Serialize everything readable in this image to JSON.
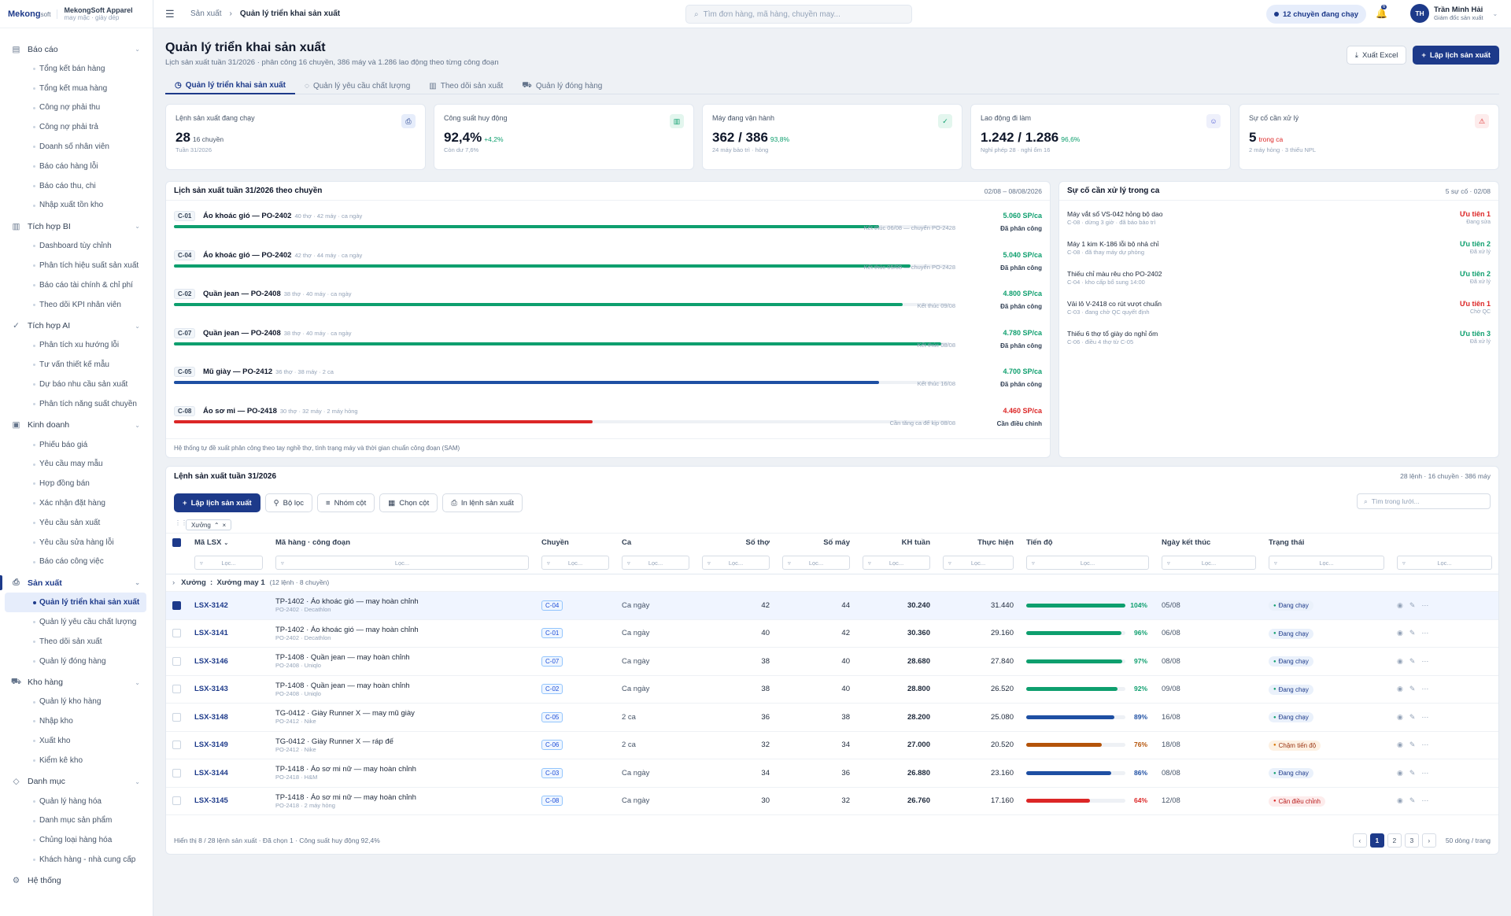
{
  "brand": {
    "logo": "Mekong",
    "logo_suffix": "soft",
    "name": "MekongSoft Apparel",
    "sub": "may mặc · giày dép"
  },
  "sidebar": {
    "groups": [
      {
        "label": "Báo cáo",
        "icon": "file-icon",
        "items": [
          "Tổng kết bán hàng",
          "Tổng kết mua hàng",
          "Công nợ phải thu",
          "Công nợ phải trả",
          "Doanh số nhân viên",
          "Báo cáo hàng lỗi",
          "Báo cáo thu, chi",
          "Nhập xuất tồn kho"
        ]
      },
      {
        "label": "Tích hợp BI",
        "icon": "chart-icon",
        "items": [
          "Dashboard tùy chỉnh",
          "Phân tích hiệu suất sản xuất",
          "Báo cáo tài chính & chỉ phí",
          "Theo dõi KPI nhân viên"
        ]
      },
      {
        "label": "Tích hợp AI",
        "icon": "check-circle-icon",
        "items": [
          "Phân tích xu hướng lỗi",
          "Tư vấn thiết kế mẫu",
          "Dự báo nhu cầu sản xuất",
          "Phân tích năng suất chuyền"
        ]
      },
      {
        "label": "Kinh doanh",
        "icon": "briefcase-icon",
        "items": [
          "Phiếu báo giá",
          "Yêu cầu may mẫu",
          "Hợp đồng bán",
          "Xác nhận đặt hàng",
          "Yêu cầu sản xuất",
          "Yêu cầu sửa hàng lỗi",
          "Báo cáo công việc"
        ]
      },
      {
        "label": "Sản xuất",
        "icon": "printer-icon",
        "active": true,
        "items": [
          "Quản lý triển khai sản xuất",
          "Quản lý yêu cầu chất lượng",
          "Theo dõi sản xuất",
          "Quản lý đóng hàng"
        ]
      },
      {
        "label": "Kho hàng",
        "icon": "truck-icon",
        "items": [
          "Quản lý kho hàng",
          "Nhập kho",
          "Xuất kho",
          "Kiểm kê kho"
        ]
      },
      {
        "label": "Danh mục",
        "icon": "box-icon",
        "items": [
          "Quản lý hàng hóa",
          "Danh mục sản phẩm",
          "Chủng loại hàng hóa",
          "Khách hàng - nhà cung cấp"
        ]
      },
      {
        "label": "Hệ thống",
        "icon": "gear-icon",
        "items": []
      }
    ]
  },
  "topbar": {
    "crumb1": "Sản xuất",
    "crumb2": "Quản lý triển khai sản xuất",
    "search_placeholder": "Tìm đơn hàng, mã hàng, chuyền may...",
    "running_pill": "12 chuyền đang chạy",
    "notif_count": "6",
    "user_initials": "TH",
    "user_name": "Trần Minh Hải",
    "user_role": "Giám đốc sản xuất"
  },
  "page": {
    "title": "Quản lý triển khai sản xuất",
    "subtitle": "Lịch sản xuất tuần 31/2026 · phân công 16 chuyền, 386 máy và 1.286 lao động theo từng công đoạn",
    "export": "Xuất Excel",
    "schedule": "Lập lịch sản xuất"
  },
  "tabs": [
    "Quản lý triển khai sản xuất",
    "Quản lý yêu cầu chất lượng",
    "Theo dõi sản xuất",
    "Quản lý đóng hàng"
  ],
  "kpis": [
    {
      "label": "Lệnh sản xuất đang chạy",
      "value": "28",
      "extra": "16 chuyền",
      "extra_color": "#475569",
      "note": "Tuần 31/2026",
      "icon": "printer-icon",
      "icon_bg": "#e6edfb",
      "icon_color": "#1d3a8a"
    },
    {
      "label": "Công suất huy động",
      "value": "92,4%",
      "extra": "+4,2%",
      "extra_color": "#0e9f6e",
      "note": "Còn dư 7,6%",
      "icon": "bar-chart-icon",
      "icon_bg": "#e3f6ee",
      "icon_color": "#0e9f6e"
    },
    {
      "label": "Máy đang vận hành",
      "value": "362 / 386",
      "extra": "93,8%",
      "extra_color": "#0e9f6e",
      "note": "24 máy bảo trì · hỏng",
      "icon": "check-circle-icon",
      "icon_bg": "#e3f6ee",
      "icon_color": "#0e9f6e"
    },
    {
      "label": "Lao động đi làm",
      "value": "1.242 / 1.286",
      "extra": "96,6%",
      "extra_color": "#0e9f6e",
      "note": "Nghỉ phép 28 · nghỉ ốm 16",
      "icon": "users-icon",
      "icon_bg": "#eef0fb",
      "icon_color": "#4f5bd5"
    },
    {
      "label": "Sự cố cần xử lý",
      "value": "5",
      "extra": "trong ca",
      "extra_color": "#dc2626",
      "note": "2 máy hỏng · 3 thiếu NPL",
      "icon": "warning-icon",
      "icon_bg": "#fdecec",
      "icon_color": "#dc2626"
    }
  ],
  "schedule": {
    "title": "Lịch sản xuất tuần 31/2026 theo chuyền",
    "range": "02/08 – 08/08/2026",
    "rows": [
      {
        "code": "C-01",
        "name": "Áo khoác gió — PO-2402",
        "meta": "40 thợ · 42 máy · ca ngày",
        "rate": "5.060 SP/ca",
        "rate_color": "#0e9f6e",
        "pct": 0.91,
        "color": "#0e9f6e",
        "end": "Kết thúc 06/08 — chuyển PO-2428",
        "status": "Đã phân công"
      },
      {
        "code": "C-04",
        "name": "Áo khoác gió — PO-2402",
        "meta": "42 thợ · 44 máy · ca ngày",
        "rate": "5.040 SP/ca",
        "rate_color": "#0e9f6e",
        "pct": 0.95,
        "color": "#0e9f6e",
        "end": "Kết thúc 05/08 — chuyển PO-2428",
        "status": "Đã phân công"
      },
      {
        "code": "C-02",
        "name": "Quần jean — PO-2408",
        "meta": "38 thợ · 40 máy · ca ngày",
        "rate": "4.800 SP/ca",
        "rate_color": "#0e9f6e",
        "pct": 0.94,
        "color": "#0e9f6e",
        "end": "Kết thúc 09/08",
        "status": "Đã phân công"
      },
      {
        "code": "C-07",
        "name": "Quần jean — PO-2408",
        "meta": "38 thợ · 40 máy · ca ngày",
        "rate": "4.780 SP/ca",
        "rate_color": "#0e9f6e",
        "pct": 0.99,
        "color": "#0e9f6e",
        "end": "Kết thúc 08/08",
        "status": "Đã phân công"
      },
      {
        "code": "C-05",
        "name": "Mũ giày — PO-2412",
        "meta": "36 thợ · 38 máy · 2 ca",
        "rate": "4.700 SP/ca",
        "rate_color": "#0e9f6e",
        "pct": 0.91,
        "color": "#1e4fa3",
        "end": "Kết thúc 16/08",
        "status": "Đã phân công"
      },
      {
        "code": "C-08",
        "name": "Áo sơ mi — PO-2418",
        "meta": "30 thợ · 32 máy · 2 máy hỏng",
        "rate": "4.460 SP/ca",
        "rate_color": "#dc2626",
        "pct": 0.54,
        "color": "#dc2626",
        "end": "Cần tăng ca để kịp 08/08",
        "status": "Cần điều chỉnh"
      }
    ],
    "footnote": "Hệ thống tự đề xuất phân công theo tay nghề thợ, tình trạng máy và thời gian chuẩn công đoạn (SAM)"
  },
  "incidents": {
    "title": "Sự cố cần xử lý trong ca",
    "meta": "5 sự cố · 02/08",
    "items": [
      {
        "title": "Máy vắt sổ VS-042 hỏng bộ dao",
        "detail": "C-08 · dừng 3 giờ · đã báo bảo trì",
        "priority": "Ưu tiên 1",
        "color": "#dc2626",
        "state": "Đang sửa"
      },
      {
        "title": "Máy 1 kim K-186 lỗi bộ nhả chỉ",
        "detail": "C-08 · đã thay máy dự phòng",
        "priority": "Ưu tiên 2",
        "color": "#0e9f6e",
        "state": "Đã xử lý"
      },
      {
        "title": "Thiếu chỉ màu rêu cho PO-2402",
        "detail": "C-04 · kho cấp bổ sung 14:00",
        "priority": "Ưu tiên 2",
        "color": "#0e9f6e",
        "state": "Đã xử lý"
      },
      {
        "title": "Vải lô V-2418 co rút vượt chuẩn",
        "detail": "C-03 · đang chờ QC quyết định",
        "priority": "Ưu tiên 1",
        "color": "#dc2626",
        "state": "Chờ QC"
      },
      {
        "title": "Thiếu 6 thợ tổ giày do nghỉ ốm",
        "detail": "C-06 · điều 4 thợ từ C-05",
        "priority": "Ưu tiên 3",
        "color": "#0e9f6e",
        "state": "Đã xử lý"
      }
    ]
  },
  "grid": {
    "title": "Lệnh sản xuất tuần 31/2026",
    "meta": "28 lệnh · 16 chuyền · 386 máy",
    "toolbar": [
      "Lập lịch sản xuất",
      "Bộ lọc",
      "Nhóm cột",
      "Chọn cột",
      "In lệnh sản xuất"
    ],
    "search_placeholder": "Tìm trong lưới...",
    "group_chip": "Xưởng",
    "filter_placeholder": "Lọc...",
    "columns": [
      "Mã LSX",
      "Mã hàng · công đoạn",
      "Chuyền",
      "Ca",
      "Số thợ",
      "Số máy",
      "KH tuần",
      "Thực hiện",
      "Tiến độ",
      "Ngày kết thúc",
      "Trạng thái"
    ],
    "group_row": "Xưởng  :  Xưởng may 1",
    "group_meta": "(12 lệnh · 8 chuyền)",
    "rows": [
      {
        "id": "LSX-3142",
        "item": "TP-1402 · Áo khoác gió — may hoàn chỉnh",
        "po": "PO-2402 · Decathlon",
        "line": "C-04",
        "shift": "Ca ngày",
        "workers": "42",
        "machines": "44",
        "plan": "30.240",
        "done": "31.440",
        "progress": 1.04,
        "pct": "104%",
        "color": "#0e9f6e",
        "end": "05/08",
        "status": "Đang chạy",
        "sbg": "#eaf1fb",
        "sfg": "#1d3a8a",
        "sdot": "#0e9f6e",
        "selected": true
      },
      {
        "id": "LSX-3141",
        "item": "TP-1402 · Áo khoác gió — may hoàn chỉnh",
        "po": "PO-2402 · Decathlon",
        "line": "C-01",
        "shift": "Ca ngày",
        "workers": "40",
        "machines": "42",
        "plan": "30.360",
        "done": "29.160",
        "progress": 0.96,
        "pct": "96%",
        "color": "#0e9f6e",
        "end": "06/08",
        "status": "Đang chạy",
        "sbg": "#eaf1fb",
        "sfg": "#1d3a8a",
        "sdot": "#0e9f6e"
      },
      {
        "id": "LSX-3146",
        "item": "TP-1408 · Quần jean — may hoàn chỉnh",
        "po": "PO-2408 · Uniqlo",
        "line": "C-07",
        "shift": "Ca ngày",
        "workers": "38",
        "machines": "40",
        "plan": "28.680",
        "done": "27.840",
        "progress": 0.97,
        "pct": "97%",
        "color": "#0e9f6e",
        "end": "08/08",
        "status": "Đang chạy",
        "sbg": "#eaf1fb",
        "sfg": "#1d3a8a",
        "sdot": "#0e9f6e"
      },
      {
        "id": "LSX-3143",
        "item": "TP-1408 · Quần jean — may hoàn chỉnh",
        "po": "PO-2408 · Uniqlo",
        "line": "C-02",
        "shift": "Ca ngày",
        "workers": "38",
        "machines": "40",
        "plan": "28.800",
        "done": "26.520",
        "progress": 0.92,
        "pct": "92%",
        "color": "#0e9f6e",
        "end": "09/08",
        "status": "Đang chạy",
        "sbg": "#eaf1fb",
        "sfg": "#1d3a8a",
        "sdot": "#0e9f6e"
      },
      {
        "id": "LSX-3148",
        "item": "TG-0412 · Giày Runner X — may mũ giày",
        "po": "PO-2412 · Nike",
        "line": "C-05",
        "shift": "2 ca",
        "workers": "36",
        "machines": "38",
        "plan": "28.200",
        "done": "25.080",
        "progress": 0.89,
        "pct": "89%",
        "color": "#1e4fa3",
        "end": "16/08",
        "status": "Đang chạy",
        "sbg": "#eaf1fb",
        "sfg": "#1d3a8a",
        "sdot": "#0e9f6e"
      },
      {
        "id": "LSX-3149",
        "item": "TG-0412 · Giày Runner X — ráp đế",
        "po": "PO-2412 · Nike",
        "line": "C-06",
        "shift": "2 ca",
        "workers": "32",
        "machines": "34",
        "plan": "27.000",
        "done": "20.520",
        "progress": 0.76,
        "pct": "76%",
        "color": "#b45309",
        "end": "18/08",
        "status": "Chậm tiến độ",
        "sbg": "#fdf1e3",
        "sfg": "#9a3412",
        "sdot": "#d97706"
      },
      {
        "id": "LSX-3144",
        "item": "TP-1418 · Áo sơ mi nữ — may hoàn chỉnh",
        "po": "PO-2418 · H&M",
        "line": "C-03",
        "shift": "Ca ngày",
        "workers": "34",
        "machines": "36",
        "plan": "26.880",
        "done": "23.160",
        "progress": 0.86,
        "pct": "86%",
        "color": "#1e4fa3",
        "end": "08/08",
        "status": "Đang chạy",
        "sbg": "#eaf1fb",
        "sfg": "#1d3a8a",
        "sdot": "#0e9f6e"
      },
      {
        "id": "LSX-3145",
        "item": "TP-1418 · Áo sơ mi nữ — may hoàn chỉnh",
        "po": "PO-2418 · 2 máy hỏng",
        "line": "C-08",
        "shift": "Ca ngày",
        "workers": "30",
        "machines": "32",
        "plan": "26.760",
        "done": "17.160",
        "progress": 0.64,
        "pct": "64%",
        "color": "#dc2626",
        "end": "12/08",
        "status": "Cần điều chỉnh",
        "sbg": "#fdecec",
        "sfg": "#b91c1c",
        "sdot": "#dc2626"
      }
    ],
    "footer": "Hiển thị 8 / 28 lệnh sản xuất · Đã chọn 1 · Công suất huy động 92,4%",
    "pages": [
      "‹",
      "1",
      "2",
      "3",
      "›"
    ],
    "page_size": "50 dòng / trang"
  }
}
